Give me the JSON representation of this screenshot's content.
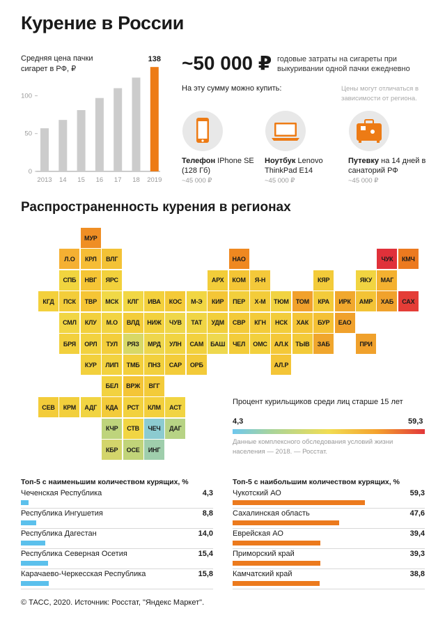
{
  "title": "Курение в России",
  "price_chart": {
    "label": "Средняя цена пачки сигарет в РФ, ₽",
    "highlight_label": "138"
  },
  "chart_data": [
    {
      "type": "bar",
      "title": "Средняя цена пачки сигарет в РФ, ₽",
      "categories": [
        "2013",
        "14",
        "15",
        "16",
        "17",
        "18",
        "2019"
      ],
      "values": [
        57,
        68,
        81,
        97,
        110,
        124,
        138
      ],
      "ylim": [
        0,
        140
      ],
      "yticks": [
        "0",
        "50",
        "100"
      ],
      "colors": {
        "bar": "#cccccc",
        "highlight": "#ed7b15"
      }
    }
  ],
  "cost": {
    "amount": "~50 000 ₽",
    "description": "годовые затраты на сигареты при выкуривании одной пачки ежедневно",
    "can_buy": "На эту сумму можно купить:",
    "disclaimer": "Цены могут отличаться в зависимости от региона.",
    "items": [
      {
        "bold": "Телефон",
        "text": " IPhone SE (128 Гб)",
        "price": "~45 000 ₽",
        "icon": "phone-icon"
      },
      {
        "bold": "Ноутбук",
        "text": " Lenovo ThinkPad E14",
        "price": "~45 000 ₽",
        "icon": "laptop-icon"
      },
      {
        "bold": "Путевку",
        "text": " на 14 дней в санаторий РФ",
        "price": "~45 000 ₽",
        "icon": "suitcase-icon"
      }
    ]
  },
  "map_title": "Распространенность курения в регионах",
  "map_regions": [
    {
      "code": "МУР",
      "row": 0,
      "col": 2,
      "color": "#ef8e24"
    },
    {
      "code": "Л.О",
      "row": 1,
      "col": 1,
      "color": "#f5b032"
    },
    {
      "code": "КРЛ",
      "row": 1,
      "col": 2,
      "color": "#f6bd35"
    },
    {
      "code": "ВЛГ",
      "row": 1,
      "col": 3,
      "color": "#f3c236"
    },
    {
      "code": "НАО",
      "row": 1,
      "col": 9,
      "color": "#ef8820"
    },
    {
      "code": "ЧУК",
      "row": 1,
      "col": 16,
      "color": "#e0313a"
    },
    {
      "code": "КМЧ",
      "row": 1,
      "col": 17,
      "color": "#ec7a1f"
    },
    {
      "code": "СПБ",
      "row": 2,
      "col": 1,
      "color": "#f1d53f"
    },
    {
      "code": "НВГ",
      "row": 2,
      "col": 2,
      "color": "#f5c535"
    },
    {
      "code": "ЯРС",
      "row": 2,
      "col": 3,
      "color": "#f2d13c"
    },
    {
      "code": "АРХ",
      "row": 2,
      "col": 8,
      "color": "#f2cd3a"
    },
    {
      "code": "КОМ",
      "row": 2,
      "col": 9,
      "color": "#f4c535"
    },
    {
      "code": "Я-Н",
      "row": 2,
      "col": 10,
      "color": "#f4c93a"
    },
    {
      "code": "КЯР",
      "row": 2,
      "col": 13,
      "color": "#f3cb3a"
    },
    {
      "code": "ЯКУ",
      "row": 2,
      "col": 15,
      "color": "#f1d441"
    },
    {
      "code": "МАГ",
      "row": 2,
      "col": 16,
      "color": "#f4b130"
    },
    {
      "code": "КГД",
      "row": 3,
      "col": 0,
      "color": "#f3d03c"
    },
    {
      "code": "ПСК",
      "row": 3,
      "col": 1,
      "color": "#f3cd3a"
    },
    {
      "code": "ТВР",
      "row": 3,
      "col": 2,
      "color": "#f5c535"
    },
    {
      "code": "МСК",
      "row": 3,
      "col": 3,
      "color": "#f0d947"
    },
    {
      "code": "КЛГ",
      "row": 3,
      "col": 4,
      "color": "#f1d744"
    },
    {
      "code": "ИВА",
      "row": 3,
      "col": 5,
      "color": "#f3d03c"
    },
    {
      "code": "КОС",
      "row": 3,
      "col": 6,
      "color": "#f4ca38"
    },
    {
      "code": "М-Э",
      "row": 3,
      "col": 7,
      "color": "#f1d643"
    },
    {
      "code": "КИР",
      "row": 3,
      "col": 8,
      "color": "#f4c637"
    },
    {
      "code": "ПЕР",
      "row": 3,
      "col": 9,
      "color": "#f2cf3c"
    },
    {
      "code": "Х-М",
      "row": 3,
      "col": 10,
      "color": "#f3cc3a"
    },
    {
      "code": "ТЮМ",
      "row": 3,
      "col": 11,
      "color": "#f1d341"
    },
    {
      "code": "ТОМ",
      "row": 3,
      "col": 12,
      "color": "#f1a12c"
    },
    {
      "code": "КРА",
      "row": 3,
      "col": 13,
      "color": "#f3cb3a"
    },
    {
      "code": "ИРК",
      "row": 3,
      "col": 14,
      "color": "#f1a82d"
    },
    {
      "code": "АМР",
      "row": 3,
      "col": 15,
      "color": "#f3c336"
    },
    {
      "code": "ХАБ",
      "row": 3,
      "col": 16,
      "color": "#f0a22c"
    },
    {
      "code": "САХ",
      "row": 3,
      "col": 17,
      "color": "#e43d37"
    },
    {
      "code": "СМЛ",
      "row": 4,
      "col": 1,
      "color": "#f1d644"
    },
    {
      "code": "КЛУ",
      "row": 4,
      "col": 2,
      "color": "#f2d03d"
    },
    {
      "code": "М.О",
      "row": 4,
      "col": 3,
      "color": "#f2d442"
    },
    {
      "code": "ВЛД",
      "row": 4,
      "col": 4,
      "color": "#f3cd3b"
    },
    {
      "code": "НИЖ",
      "row": 4,
      "col": 5,
      "color": "#f2d13e"
    },
    {
      "code": "ЧУВ",
      "row": 4,
      "col": 6,
      "color": "#efd74a"
    },
    {
      "code": "ТАТ",
      "row": 4,
      "col": 7,
      "color": "#f0d545"
    },
    {
      "code": "УДМ",
      "row": 4,
      "col": 8,
      "color": "#f2cf3c"
    },
    {
      "code": "СВР",
      "row": 4,
      "col": 9,
      "color": "#f3ca39"
    },
    {
      "code": "КГН",
      "row": 4,
      "col": 10,
      "color": "#f3cb3a"
    },
    {
      "code": "НСК",
      "row": 4,
      "col": 11,
      "color": "#f2cd3b"
    },
    {
      "code": "ХАК",
      "row": 4,
      "col": 12,
      "color": "#f4c537"
    },
    {
      "code": "БУР",
      "row": 4,
      "col": 13,
      "color": "#f4c135"
    },
    {
      "code": "ЕАО",
      "row": 4,
      "col": 14,
      "color": "#f0a12c"
    },
    {
      "code": "БРЯ",
      "row": 5,
      "col": 1,
      "color": "#f2d03d"
    },
    {
      "code": "ОРЛ",
      "row": 5,
      "col": 2,
      "color": "#f2d240"
    },
    {
      "code": "ТУЛ",
      "row": 5,
      "col": 3,
      "color": "#f3ce3b"
    },
    {
      "code": "РЯЗ",
      "row": 5,
      "col": 4,
      "color": "#d8d866"
    },
    {
      "code": "МРД",
      "row": 5,
      "col": 5,
      "color": "#eed64c"
    },
    {
      "code": "УЛН",
      "row": 5,
      "col": 6,
      "color": "#f1d442"
    },
    {
      "code": "САМ",
      "row": 5,
      "col": 7,
      "color": "#f2d13e"
    },
    {
      "code": "БАШ",
      "row": 5,
      "col": 8,
      "color": "#eed84e"
    },
    {
      "code": "ЧЕЛ",
      "row": 5,
      "col": 9,
      "color": "#f3cc3a"
    },
    {
      "code": "ОМС",
      "row": 5,
      "col": 10,
      "color": "#f2d03d"
    },
    {
      "code": "АЛ.К",
      "row": 5,
      "col": 11,
      "color": "#f4c838"
    },
    {
      "code": "ТЫВ",
      "row": 5,
      "col": 12,
      "color": "#f3ca39"
    },
    {
      "code": "ЗАБ",
      "row": 5,
      "col": 13,
      "color": "#f0a62d"
    },
    {
      "code": "ПРИ",
      "row": 5,
      "col": 15,
      "color": "#f0a12c"
    },
    {
      "code": "КУР",
      "row": 6,
      "col": 2,
      "color": "#f2d03d"
    },
    {
      "code": "ЛИП",
      "row": 6,
      "col": 3,
      "color": "#f2d240"
    },
    {
      "code": "ТМБ",
      "row": 6,
      "col": 4,
      "color": "#f3cf3c"
    },
    {
      "code": "ПНЗ",
      "row": 6,
      "col": 5,
      "color": "#f2d03d"
    },
    {
      "code": "САР",
      "row": 6,
      "col": 6,
      "color": "#f3cc3a"
    },
    {
      "code": "ОРБ",
      "row": 6,
      "col": 7,
      "color": "#f3ca39"
    },
    {
      "code": "АЛ.Р",
      "row": 6,
      "col": 11,
      "color": "#f4c537"
    },
    {
      "code": "БЕЛ",
      "row": 7,
      "col": 3,
      "color": "#f2d240"
    },
    {
      "code": "ВРЖ",
      "row": 7,
      "col": 4,
      "color": "#f4c537"
    },
    {
      "code": "ВГГ",
      "row": 7,
      "col": 5,
      "color": "#f3cb3a"
    },
    {
      "code": "СЕВ",
      "row": 8,
      "col": 0,
      "color": "#f3cc3a"
    },
    {
      "code": "КРМ",
      "row": 8,
      "col": 1,
      "color": "#f2cf3c"
    },
    {
      "code": "АДГ",
      "row": 8,
      "col": 2,
      "color": "#f1d442"
    },
    {
      "code": "КДА",
      "row": 8,
      "col": 3,
      "color": "#f3cb3a"
    },
    {
      "code": "РСТ",
      "row": 8,
      "col": 4,
      "color": "#f2d13e"
    },
    {
      "code": "КЛМ",
      "row": 8,
      "col": 5,
      "color": "#f3cf3c"
    },
    {
      "code": "АСТ",
      "row": 8,
      "col": 6,
      "color": "#f1d442"
    },
    {
      "code": "КЧР",
      "row": 9,
      "col": 3,
      "color": "#bed47c"
    },
    {
      "code": "СТВ",
      "row": 9,
      "col": 4,
      "color": "#f1d543"
    },
    {
      "code": "ЧЕЧ",
      "row": 9,
      "col": 5,
      "color": "#8ccbd0"
    },
    {
      "code": "ДАГ",
      "row": 9,
      "col": 6,
      "color": "#b7d385"
    },
    {
      "code": "КБР",
      "row": 10,
      "col": 3,
      "color": "#d3d56b"
    },
    {
      "code": "ОСЕ",
      "row": 10,
      "col": 4,
      "color": "#c1d479"
    },
    {
      "code": "ИНГ",
      "row": 10,
      "col": 5,
      "color": "#9fceac"
    }
  ],
  "legend": {
    "title": "Процент курильщиков среди лиц старше 15 лет",
    "min": "4,3",
    "max": "59,3",
    "note": "Данные комплексного обследования условий жизни населения — 2018. — Росстат."
  },
  "bottom5": {
    "title": "Топ-5 с наименьшим количеством курящих, %",
    "color": "#5bc0ec",
    "rows": [
      {
        "name": "Чеченская Республика",
        "value": "4,3",
        "num": 4.3
      },
      {
        "name": "Республика Ингушетия",
        "value": "8,8",
        "num": 8.8
      },
      {
        "name": "Республика Дагестан",
        "value": "14,0",
        "num": 14.0
      },
      {
        "name": "Республика Северная Осетия",
        "value": "15,4",
        "num": 15.4
      },
      {
        "name": "Карачаево-Черкесская Республика",
        "value": "15,8",
        "num": 15.8
      }
    ]
  },
  "top5": {
    "title": "Топ-5 с наибольшим количеством курящих, %",
    "color": "#ec7a1d",
    "rows": [
      {
        "name": "Чукотский АО",
        "value": "59,3",
        "num": 59.3
      },
      {
        "name": "Сахалинская область",
        "value": "47,6",
        "num": 47.6
      },
      {
        "name": "Еврейская АО",
        "value": "39,4",
        "num": 39.4
      },
      {
        "name": "Приморский край",
        "value": "39,3",
        "num": 39.3
      },
      {
        "name": "Камчатский край",
        "value": "38,8",
        "num": 38.8
      }
    ]
  },
  "footer": "© ТАСС, 2020. Источник: Росстат, \"Яндекс Маркет\"."
}
